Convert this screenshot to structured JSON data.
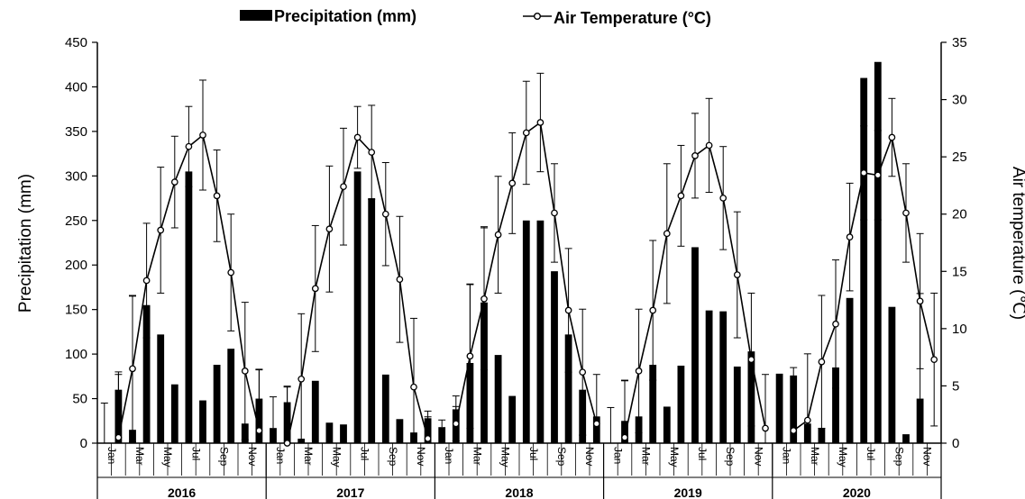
{
  "chart_data": {
    "type": "bar+line",
    "legend": {
      "placement": "top-center",
      "bar_label": "Precipitation (mm)",
      "line_label": "Air Temperature (°C)"
    },
    "left_axis": {
      "label": "Precipitation (mm)",
      "range": [
        0,
        450
      ],
      "ticks": [
        "0",
        "50",
        "100",
        "150",
        "200",
        "250",
        "300",
        "350",
        "400",
        "450"
      ]
    },
    "right_axis": {
      "label": "Air temperature (℃)",
      "range": [
        0,
        35
      ],
      "ticks": [
        "0",
        "5",
        "10",
        "15",
        "20",
        "25",
        "30",
        "35"
      ]
    },
    "month_labels": [
      "Jan",
      "Mar",
      "May",
      "Jul",
      "Sep",
      "Nov"
    ],
    "years": [
      "2016",
      "2017",
      "2018",
      "2019",
      "2020"
    ],
    "series": [
      {
        "name": "Precipitation (mm)",
        "kind": "bar",
        "values": [
          0,
          60,
          15,
          155,
          122,
          66,
          305,
          48,
          88,
          106,
          22,
          50,
          17,
          46,
          5,
          70,
          23,
          21,
          305,
          275,
          77,
          27,
          12,
          28,
          18,
          38,
          90,
          158,
          99,
          53,
          250,
          250,
          193,
          122,
          60,
          30,
          0,
          25,
          30,
          88,
          41,
          87,
          220,
          149,
          148,
          86,
          103,
          0,
          78,
          76,
          22,
          17,
          85,
          163,
          410,
          428,
          153,
          10,
          50,
          0
        ],
        "error": [
          45,
          20,
          150,
          0,
          0,
          0,
          0,
          0,
          0,
          0,
          0,
          33,
          35,
          18,
          0,
          0,
          0,
          0,
          0,
          0,
          0,
          0,
          0,
          8,
          8,
          15,
          88,
          85,
          0,
          0,
          0,
          0,
          0,
          0,
          0,
          0,
          40,
          45,
          0,
          0,
          0,
          0,
          0,
          0,
          0,
          0,
          0,
          0,
          0,
          0,
          0,
          0,
          0,
          0,
          0,
          0,
          0,
          0,
          118,
          0
        ]
      },
      {
        "name": "Air Temperature (°C)",
        "kind": "line",
        "values": [
          null,
          0.5,
          6.5,
          14.2,
          18.6,
          22.8,
          25.9,
          26.9,
          21.6,
          14.9,
          6.3,
          1.1,
          null,
          0,
          5.6,
          13.5,
          18.7,
          22.4,
          26.7,
          25.4,
          20,
          14.3,
          4.9,
          0.4,
          null,
          1.7,
          7.6,
          12.6,
          18.2,
          22.7,
          27.1,
          28,
          20.1,
          11.6,
          6.2,
          1.7,
          null,
          0.5,
          6.3,
          11.6,
          18.3,
          21.6,
          25.1,
          26,
          21.4,
          14.7,
          7.3,
          1.3,
          null,
          1.1,
          2,
          7.1,
          10.4,
          18,
          23.6,
          23.4,
          26.7,
          20.1,
          12.4,
          7.3
        ],
        "error": [
          0,
          5.5,
          6.4,
          5,
          5.5,
          4,
          3.5,
          4.8,
          4,
          5.1,
          6,
          5.3,
          0,
          4.9,
          5.7,
          5.5,
          5.5,
          5.1,
          2.7,
          4.1,
          4.5,
          5.5,
          6,
          1.9,
          0,
          1.5,
          6.3,
          6.2,
          5.1,
          4.4,
          4.5,
          4.3,
          4.3,
          5.4,
          5.5,
          4.3,
          0,
          5,
          5.4,
          6.1,
          6.1,
          4.4,
          3.7,
          4.1,
          4.5,
          5.5,
          5.8,
          4.7,
          0,
          5.5,
          5.8,
          5.8,
          5.6,
          4.7,
          4.1,
          3.9,
          3.4,
          4.3,
          5.9,
          5.8
        ]
      }
    ]
  }
}
